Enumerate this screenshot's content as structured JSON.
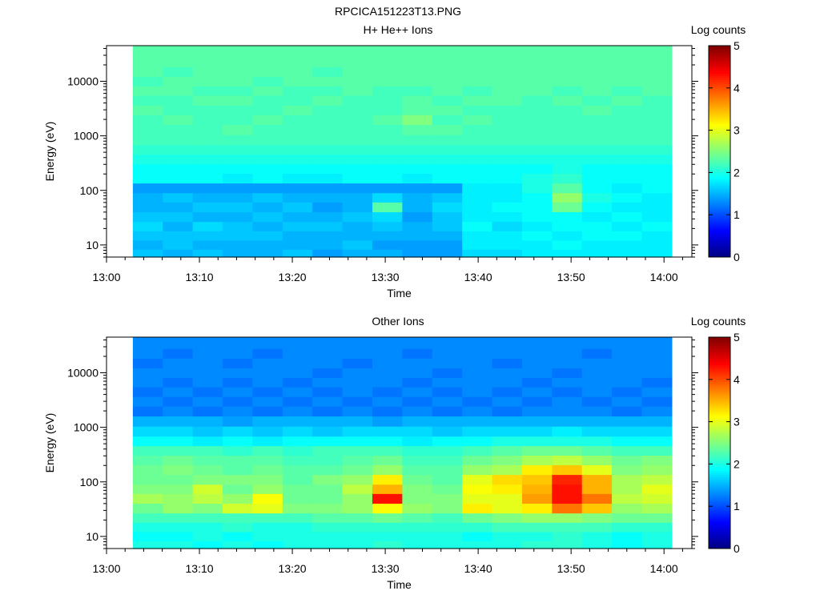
{
  "figure": {
    "title": "RPCICA151223T13.PNG"
  },
  "chart_data": [
    {
      "type": "heatmap",
      "title": "H+ He++ Ions",
      "xlabel": "Time",
      "ylabel": "Energy (eV)",
      "y_scale": "log",
      "ylim": [
        6,
        45000
      ],
      "xlim": [
        "13:00",
        "14:03"
      ],
      "x_ticks": [
        "13:00",
        "13:10",
        "13:20",
        "13:30",
        "13:40",
        "13:50",
        "14:00"
      ],
      "y_ticks": [
        10,
        100,
        1000,
        10000
      ],
      "y_tick_labels": [
        "10",
        "100",
        "1000",
        "10000"
      ],
      "colorbar": {
        "label": "Log counts",
        "range": [
          0,
          5
        ],
        "ticks": [
          "0",
          "1",
          "2",
          "3",
          "4",
          "5"
        ]
      },
      "time_start": "13:02:50",
      "time_end": "14:00:50",
      "energy_levels": [
        7,
        10,
        15,
        22,
        33,
        50,
        75,
        110,
        170,
        250,
        380,
        560,
        850,
        1300,
        2000,
        3000,
        4500,
        6800,
        10000,
        15000,
        23000,
        34000
      ],
      "columns": [
        [
          1.6,
          1.5,
          1.6,
          1.7,
          1.6,
          1.5,
          1.5,
          1.4,
          1.9,
          1.9,
          2.0,
          2.1,
          2.2,
          2.2,
          2.2,
          2.3,
          2.2,
          2.3,
          2.2,
          2.3,
          2.3,
          2.3
        ],
        [
          1.5,
          1.6,
          1.6,
          1.5,
          1.6,
          1.5,
          1.6,
          1.4,
          1.9,
          1.9,
          2.0,
          2.1,
          2.2,
          2.2,
          2.3,
          2.2,
          2.2,
          2.3,
          2.3,
          2.2,
          2.3,
          2.3
        ],
        [
          1.6,
          1.5,
          1.6,
          1.7,
          1.5,
          1.6,
          1.5,
          1.4,
          1.9,
          1.9,
          2.0,
          2.1,
          2.2,
          2.2,
          2.2,
          2.2,
          2.3,
          2.2,
          2.3,
          2.3,
          2.3,
          2.3
        ],
        [
          1.5,
          1.5,
          1.6,
          1.6,
          1.5,
          1.6,
          1.5,
          1.4,
          1.8,
          1.9,
          2.0,
          2.1,
          2.2,
          2.3,
          2.2,
          2.2,
          2.3,
          2.2,
          2.3,
          2.3,
          2.3,
          2.3
        ],
        [
          1.5,
          1.5,
          1.6,
          1.5,
          1.6,
          1.5,
          1.6,
          1.4,
          1.9,
          1.9,
          2.0,
          2.1,
          2.2,
          2.2,
          2.3,
          2.2,
          2.2,
          2.3,
          2.2,
          2.3,
          2.3,
          2.3
        ],
        [
          1.6,
          1.5,
          1.5,
          1.6,
          1.5,
          1.6,
          1.5,
          1.4,
          1.8,
          1.9,
          2.0,
          2.1,
          2.2,
          2.2,
          2.2,
          2.3,
          2.2,
          2.2,
          2.3,
          2.3,
          2.3,
          2.3
        ],
        [
          1.4,
          1.5,
          1.5,
          1.6,
          1.5,
          1.4,
          1.5,
          1.4,
          1.8,
          1.9,
          2.0,
          2.1,
          2.2,
          2.2,
          2.2,
          2.2,
          2.3,
          2.2,
          2.3,
          2.2,
          2.3,
          2.3
        ],
        [
          1.5,
          1.6,
          1.5,
          1.5,
          1.6,
          1.5,
          1.5,
          1.4,
          1.9,
          1.9,
          2.0,
          2.1,
          2.2,
          2.2,
          2.2,
          2.2,
          2.2,
          2.3,
          2.3,
          2.3,
          2.3,
          2.3
        ],
        [
          1.5,
          1.4,
          1.5,
          1.6,
          1.7,
          2.3,
          1.7,
          1.4,
          1.9,
          1.9,
          2.0,
          2.1,
          2.2,
          2.2,
          2.3,
          2.2,
          2.2,
          2.2,
          2.3,
          2.3,
          2.3,
          2.3
        ],
        [
          1.4,
          1.4,
          1.5,
          1.5,
          1.4,
          1.5,
          1.5,
          1.4,
          1.8,
          1.9,
          2.0,
          2.1,
          2.2,
          2.3,
          2.5,
          2.3,
          2.3,
          2.2,
          2.3,
          2.3,
          2.3,
          2.3
        ],
        [
          1.4,
          1.4,
          1.5,
          1.6,
          1.6,
          1.7,
          1.6,
          1.4,
          1.9,
          1.9,
          2.0,
          2.1,
          2.2,
          2.3,
          2.2,
          2.3,
          2.2,
          2.3,
          2.3,
          2.3,
          2.3,
          2.3
        ],
        [
          1.7,
          1.8,
          1.8,
          1.9,
          1.8,
          1.8,
          1.8,
          1.8,
          1.9,
          1.9,
          2.0,
          2.1,
          2.2,
          2.2,
          2.3,
          2.2,
          2.3,
          2.2,
          2.3,
          2.3,
          2.3,
          2.3
        ],
        [
          1.7,
          1.8,
          1.8,
          1.7,
          1.8,
          1.9,
          1.8,
          1.8,
          1.9,
          1.9,
          2.0,
          2.1,
          2.2,
          2.2,
          2.2,
          2.2,
          2.3,
          2.3,
          2.3,
          2.3,
          2.3,
          2.3
        ],
        [
          1.8,
          1.8,
          1.9,
          1.8,
          1.9,
          1.9,
          1.9,
          2.0,
          2.0,
          1.9,
          2.0,
          2.1,
          2.2,
          2.2,
          2.2,
          2.2,
          2.2,
          2.3,
          2.3,
          2.3,
          2.3,
          2.3
        ],
        [
          1.8,
          1.9,
          1.8,
          1.9,
          1.9,
          2.4,
          2.6,
          2.3,
          2.1,
          2.0,
          2.0,
          2.1,
          2.2,
          2.2,
          2.2,
          2.2,
          2.3,
          2.2,
          2.3,
          2.3,
          2.3,
          2.3
        ],
        [
          1.8,
          1.8,
          1.9,
          1.9,
          1.8,
          1.9,
          2.0,
          1.9,
          1.9,
          1.9,
          2.0,
          2.1,
          2.2,
          2.2,
          2.2,
          2.3,
          2.2,
          2.3,
          2.3,
          2.3,
          2.3,
          2.3
        ],
        [
          1.8,
          1.8,
          1.9,
          1.8,
          1.9,
          1.8,
          1.9,
          1.8,
          1.9,
          1.9,
          2.0,
          2.1,
          2.2,
          2.2,
          2.2,
          2.2,
          2.3,
          2.2,
          2.3,
          2.3,
          2.3,
          2.3
        ],
        [
          1.8,
          1.8,
          1.8,
          1.9,
          1.8,
          1.8,
          1.8,
          1.9,
          1.9,
          1.9,
          2.0,
          2.1,
          2.2,
          2.2,
          2.2,
          2.2,
          2.2,
          2.3,
          2.3,
          2.3,
          2.3,
          2.3
        ]
      ]
    },
    {
      "type": "heatmap",
      "title": "Other Ions",
      "xlabel": "Time",
      "ylabel": "Energy (eV)",
      "y_scale": "log",
      "ylim": [
        6,
        45000
      ],
      "xlim": [
        "13:00",
        "14:03"
      ],
      "x_ticks": [
        "13:00",
        "13:10",
        "13:20",
        "13:30",
        "13:40",
        "13:50",
        "14:00"
      ],
      "y_ticks": [
        10,
        100,
        1000,
        10000
      ],
      "y_tick_labels": [
        "10",
        "100",
        "1000",
        "10000"
      ],
      "colorbar": {
        "label": "Log counts",
        "range": [
          0,
          5
        ],
        "ticks": [
          "0",
          "1",
          "2",
          "3",
          "4",
          "5"
        ]
      },
      "time_start": "13:02:50",
      "time_end": "14:00:50",
      "energy_levels": [
        7,
        10,
        15,
        22,
        33,
        50,
        75,
        110,
        170,
        250,
        380,
        560,
        850,
        1300,
        2000,
        3000,
        4500,
        6800,
        10000,
        15000,
        23000,
        34000
      ],
      "columns": [
        [
          2.0,
          1.9,
          2.0,
          2.2,
          2.4,
          2.7,
          2.5,
          2.4,
          2.4,
          2.3,
          2.2,
          1.9,
          1.7,
          1.5,
          1.2,
          1.3,
          1.2,
          1.3,
          1.3,
          1.2,
          1.3,
          1.3
        ],
        [
          2.0,
          1.9,
          2.0,
          2.2,
          2.6,
          2.6,
          2.5,
          2.4,
          2.5,
          2.4,
          2.2,
          1.9,
          1.7,
          1.5,
          1.3,
          1.2,
          1.3,
          1.2,
          1.3,
          1.3,
          1.2,
          1.3
        ],
        [
          1.9,
          2.0,
          2.0,
          2.2,
          2.5,
          2.8,
          2.9,
          2.5,
          2.4,
          2.3,
          2.2,
          1.8,
          1.6,
          1.5,
          1.2,
          1.3,
          1.2,
          1.3,
          1.3,
          1.3,
          1.3,
          1.3
        ],
        [
          2.0,
          1.9,
          2.1,
          2.2,
          2.9,
          2.6,
          2.4,
          2.5,
          2.3,
          2.3,
          2.1,
          1.9,
          1.7,
          1.4,
          1.3,
          1.2,
          1.3,
          1.2,
          1.3,
          1.2,
          1.3,
          1.3
        ],
        [
          1.9,
          2.0,
          2.0,
          2.2,
          3.0,
          3.1,
          2.6,
          2.5,
          2.4,
          2.3,
          2.2,
          1.8,
          1.6,
          1.5,
          1.2,
          1.3,
          1.2,
          1.3,
          1.3,
          1.3,
          1.2,
          1.3
        ],
        [
          2.0,
          2.0,
          2.0,
          2.2,
          2.5,
          2.4,
          2.4,
          2.3,
          2.3,
          2.2,
          2.1,
          1.9,
          1.7,
          1.5,
          1.3,
          1.2,
          1.3,
          1.2,
          1.3,
          1.3,
          1.3,
          1.3
        ],
        [
          2.0,
          2.0,
          2.1,
          2.3,
          2.5,
          2.4,
          2.4,
          2.5,
          2.3,
          2.2,
          2.2,
          1.9,
          1.6,
          1.5,
          1.2,
          1.3,
          1.2,
          1.3,
          1.2,
          1.3,
          1.3,
          1.3
        ],
        [
          2.0,
          2.0,
          2.1,
          2.3,
          2.6,
          2.6,
          2.8,
          2.6,
          2.4,
          2.3,
          2.2,
          1.9,
          1.7,
          1.5,
          1.3,
          1.2,
          1.3,
          1.3,
          1.3,
          1.2,
          1.3,
          1.3
        ],
        [
          2.1,
          2.0,
          2.1,
          2.4,
          3.1,
          4.3,
          3.5,
          3.2,
          2.6,
          2.4,
          2.2,
          1.9,
          1.7,
          1.4,
          1.2,
          1.3,
          1.2,
          1.3,
          1.3,
          1.3,
          1.3,
          1.3
        ],
        [
          2.0,
          2.0,
          2.1,
          2.3,
          2.6,
          2.5,
          2.5,
          2.4,
          2.3,
          2.2,
          2.1,
          1.8,
          1.7,
          1.5,
          1.3,
          1.2,
          1.3,
          1.2,
          1.3,
          1.3,
          1.2,
          1.3
        ],
        [
          2.0,
          2.0,
          2.1,
          2.2,
          2.5,
          2.5,
          2.4,
          2.3,
          2.3,
          2.2,
          2.1,
          1.9,
          1.6,
          1.5,
          1.2,
          1.3,
          1.2,
          1.3,
          1.2,
          1.3,
          1.3,
          1.3
        ],
        [
          2.0,
          1.9,
          2.1,
          2.4,
          3.2,
          3.0,
          3.1,
          3.0,
          2.6,
          2.4,
          2.2,
          1.9,
          1.7,
          1.5,
          1.3,
          1.2,
          1.3,
          1.3,
          1.3,
          1.3,
          1.3,
          1.3
        ],
        [
          2.0,
          2.0,
          2.2,
          2.5,
          3.0,
          3.0,
          3.2,
          3.3,
          2.7,
          2.5,
          2.3,
          2.0,
          1.7,
          1.5,
          1.2,
          1.3,
          1.2,
          1.3,
          1.3,
          1.2,
          1.3,
          1.3
        ],
        [
          2.1,
          2.0,
          2.2,
          2.6,
          3.2,
          3.6,
          3.5,
          3.4,
          3.2,
          2.7,
          2.4,
          2.0,
          1.7,
          1.5,
          1.3,
          1.2,
          1.3,
          1.2,
          1.3,
          1.3,
          1.3,
          1.3
        ],
        [
          2.1,
          2.1,
          2.2,
          2.6,
          3.8,
          4.3,
          4.3,
          4.2,
          3.4,
          2.8,
          2.4,
          2.0,
          1.8,
          1.5,
          1.3,
          1.3,
          1.2,
          1.3,
          1.2,
          1.3,
          1.3,
          1.3
        ],
        [
          2.0,
          2.0,
          2.2,
          2.5,
          3.4,
          3.8,
          3.5,
          3.5,
          3.0,
          2.6,
          2.3,
          2.0,
          1.7,
          1.5,
          1.3,
          1.2,
          1.3,
          1.3,
          1.3,
          1.3,
          1.2,
          1.3
        ],
        [
          1.9,
          1.9,
          2.1,
          2.4,
          2.6,
          2.8,
          2.7,
          2.7,
          2.5,
          2.4,
          2.2,
          1.9,
          1.7,
          1.5,
          1.2,
          1.3,
          1.2,
          1.3,
          1.3,
          1.3,
          1.3,
          1.3
        ],
        [
          2.0,
          2.0,
          2.1,
          2.4,
          2.7,
          2.9,
          3.0,
          2.8,
          2.6,
          2.5,
          2.2,
          1.9,
          1.7,
          1.5,
          1.3,
          1.2,
          1.3,
          1.2,
          1.3,
          1.3,
          1.3,
          1.3
        ]
      ]
    }
  ]
}
